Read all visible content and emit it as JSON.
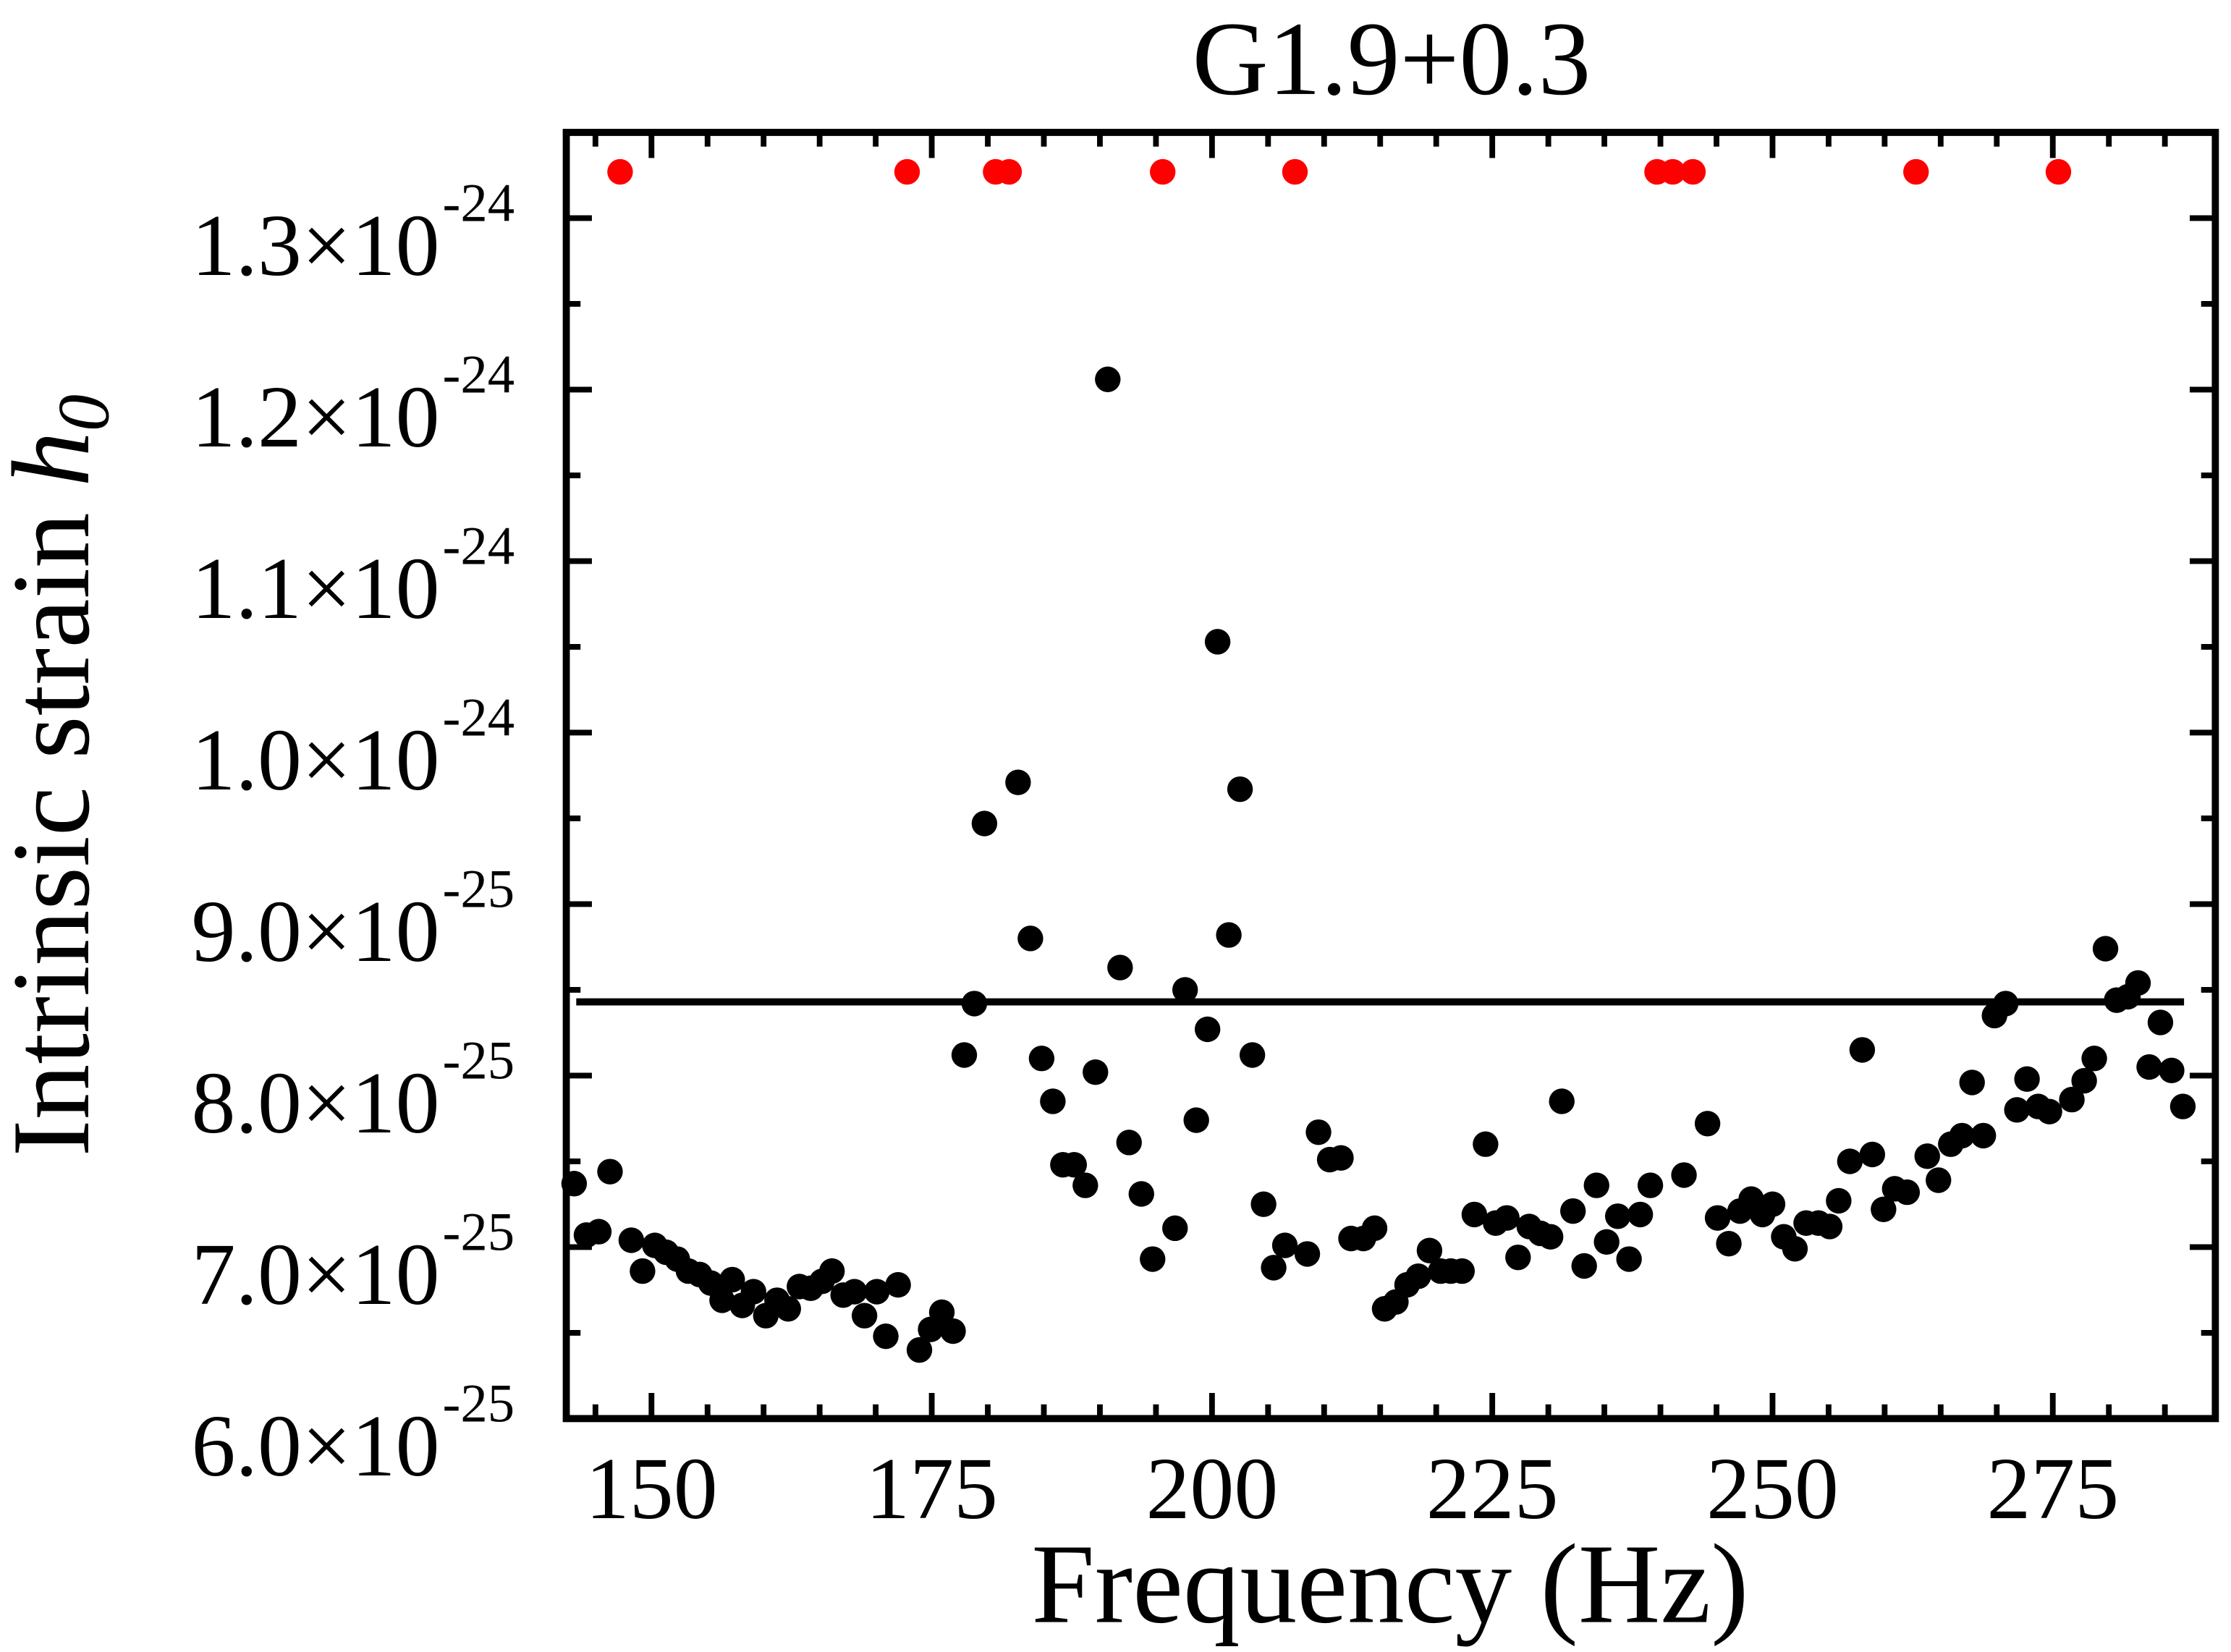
{
  "chart_data": {
    "type": "scatter",
    "title": "G1.9+0.3",
    "x_label": "Frequency (Hz)",
    "y_label": {
      "text": "Intrinsic strain",
      "symbol": "h",
      "subscript": "0"
    },
    "xlim": [
      142.4,
      289.5
    ],
    "ylim": [
      6e-25,
      1.35e-24
    ],
    "xticks": [
      150,
      175,
      200,
      225,
      250,
      275
    ],
    "yticks": [
      {
        "value": 6e-25,
        "label": "6.0×10",
        "exponent": "-25"
      },
      {
        "value": 7e-25,
        "label": "7.0×10",
        "exponent": "-25"
      },
      {
        "value": 8e-25,
        "label": "8.0×10",
        "exponent": "-25"
      },
      {
        "value": 9e-25,
        "label": "9.0×10",
        "exponent": "-25"
      },
      {
        "value": 1e-24,
        "label": "1.0×10",
        "exponent": "-24"
      },
      {
        "value": 1.1e-24,
        "label": "1.1×10",
        "exponent": "-24"
      },
      {
        "value": 1.2e-24,
        "label": "1.2×10",
        "exponent": "-24"
      },
      {
        "value": 1.3e-24,
        "label": "1.3×10",
        "exponent": "-24"
      }
    ],
    "threshold": 8.43e-25,
    "threshold_color": "#000000",
    "series": [
      {
        "color": "#000000",
        "x": [
          143.1,
          144.2,
          145.3,
          146.3,
          148.2,
          149.2,
          150.3,
          151.3,
          152.3,
          153.3,
          154.3,
          155.3,
          156.3,
          157.2,
          158.1,
          159.1,
          160.2,
          161.2,
          162.2,
          163.2,
          164.2,
          165.2,
          166.1,
          167.1,
          168.1,
          169.0,
          170.1,
          170.9,
          172.0,
          173.9,
          174.9,
          175.9,
          176.9,
          177.9,
          178.8,
          179.7,
          182.7,
          183.8,
          184.8,
          185.8,
          186.7,
          187.7,
          188.7,
          189.6,
          190.7,
          191.8,
          192.6,
          193.7,
          194.7,
          196.7,
          197.6,
          198.6,
          199.6,
          200.5,
          201.5,
          202.5,
          203.6,
          204.6,
          205.5,
          206.5,
          208.5,
          209.5,
          210.5,
          211.5,
          212.4,
          213.5,
          214.5,
          215.4,
          216.4,
          217.4,
          218.4,
          219.4,
          220.4,
          221.3,
          222.3,
          223.4,
          224.4,
          225.3,
          226.3,
          227.3,
          228.3,
          229.3,
          230.2,
          231.2,
          232.2,
          233.2,
          234.3,
          235.2,
          236.2,
          237.2,
          238.2,
          239.1,
          242.1,
          244.2,
          245.1,
          246.1,
          247.1,
          248.1,
          249.1,
          250.0,
          251.0,
          252.0,
          253.0,
          254.1,
          255.1,
          255.9,
          256.9,
          258.0,
          258.9,
          259.9,
          260.9,
          262.0,
          263.8,
          264.8,
          265.9,
          266.9,
          267.8,
          268.8,
          269.8,
          270.8,
          271.8,
          272.7,
          273.7,
          274.7,
          276.7,
          277.8,
          278.7,
          279.7,
          280.7,
          281.7,
          282.6,
          283.6,
          284.6,
          285.6,
          286.6
        ],
        "values": [
          7.37e-25,
          7.07e-25,
          7.09e-25,
          7.44e-25,
          7.04e-25,
          6.86e-25,
          7.01e-25,
          6.97e-25,
          6.93e-25,
          6.86e-25,
          6.84e-25,
          6.79e-25,
          6.69e-25,
          6.81e-25,
          6.66e-25,
          6.74e-25,
          6.6e-25,
          6.69e-25,
          6.64e-25,
          6.77e-25,
          6.76e-25,
          6.8e-25,
          6.86e-25,
          6.72e-25,
          6.74e-25,
          6.6e-25,
          6.74e-25,
          6.48e-25,
          6.78e-25,
          6.4e-25,
          6.52e-25,
          6.62e-25,
          6.51e-25,
          8.12e-25,
          8.42e-25,
          9.47e-25,
          9.71e-25,
          8.8e-25,
          8.1e-25,
          7.85e-25,
          7.48e-25,
          7.48e-25,
          7.36e-25,
          8.02e-25,
          1.206e-24,
          8.63e-25,
          7.61e-25,
          7.31e-25,
          6.93e-25,
          7.11e-25,
          8.5e-25,
          7.74e-25,
          8.27e-25,
          1.053e-24,
          8.82e-25,
          9.67e-25,
          8.12e-25,
          7.25e-25,
          6.88e-25,
          7.01e-25,
          6.96e-25,
          7.67e-25,
          7.51e-25,
          7.52e-25,
          7.05e-25,
          7.05e-25,
          7.11e-25,
          6.64e-25,
          6.68e-25,
          6.78e-25,
          6.83e-25,
          6.98e-25,
          6.86e-25,
          6.86e-25,
          6.86e-25,
          7.19e-25,
          7.6e-25,
          7.14e-25,
          7.17e-25,
          6.94e-25,
          7.12e-25,
          7.08e-25,
          7.06e-25,
          7.85e-25,
          7.21e-25,
          6.89e-25,
          7.36e-25,
          7.03e-25,
          7.18e-25,
          6.93e-25,
          7.19e-25,
          7.36e-25,
          7.42e-25,
          7.72e-25,
          7.17e-25,
          7.02e-25,
          7.21e-25,
          7.28e-25,
          7.19e-25,
          7.25e-25,
          7.06e-25,
          6.99e-25,
          7.14e-25,
          7.14e-25,
          7.12e-25,
          7.27e-25,
          7.5e-25,
          8.15e-25,
          7.54e-25,
          7.22e-25,
          7.34e-25,
          7.32e-25,
          7.53e-25,
          7.39e-25,
          7.6e-25,
          7.65e-25,
          7.96e-25,
          7.65e-25,
          8.35e-25,
          8.42e-25,
          7.8e-25,
          7.98e-25,
          7.82e-25,
          7.79e-25,
          7.86e-25,
          7.97e-25,
          8.1e-25,
          8.74e-25,
          8.44e-25,
          8.46e-25,
          8.54e-25,
          8.05e-25,
          8.31e-25,
          8.03e-25,
          7.82e-25
        ]
      },
      {
        "color": "#ff0000",
        "x": [
          147.2,
          172.8,
          180.7,
          181.9,
          195.6,
          207.4,
          239.7,
          241.1,
          242.9,
          262.8,
          275.5
        ],
        "values": [
          1.327e-24,
          1.327e-24,
          1.327e-24,
          1.327e-24,
          1.327e-24,
          1.327e-24,
          1.327e-24,
          1.327e-24,
          1.327e-24,
          1.327e-24,
          1.327e-24
        ]
      }
    ]
  }
}
